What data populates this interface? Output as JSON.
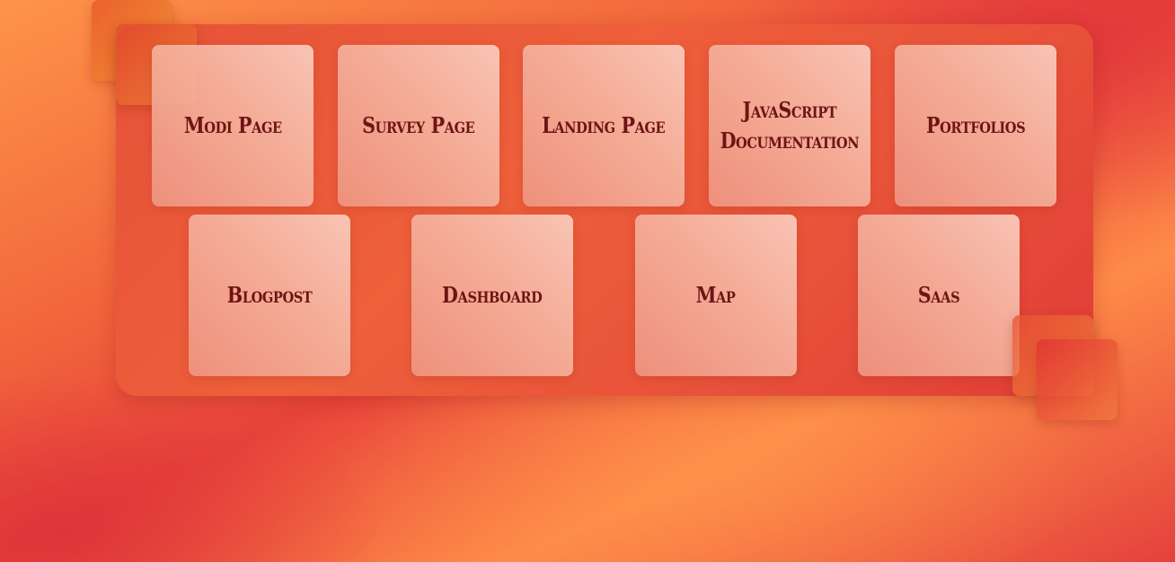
{
  "projects": {
    "items": [
      {
        "label": "Modi Page"
      },
      {
        "label": "Survey Page"
      },
      {
        "label": "Landing Page"
      },
      {
        "label": "JavaScript\nDocumentation"
      },
      {
        "label": "Portfolios"
      },
      {
        "label": "Blogpost"
      },
      {
        "label": "Dashboard"
      },
      {
        "label": "Map"
      },
      {
        "label": "Saas"
      }
    ]
  },
  "colors": {
    "text": "#6e1414",
    "panel": "#e9553a",
    "background_orange": "#fe8b48",
    "background_red": "#e4413c"
  }
}
